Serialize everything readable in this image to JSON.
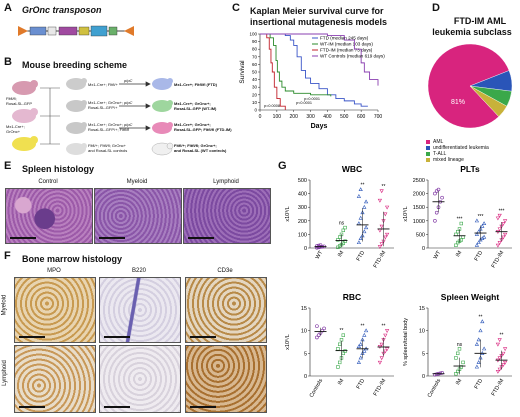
{
  "panels": {
    "A": {
      "letter": "A",
      "title": "GrOnc transposon",
      "segments": [
        "SA",
        "pA",
        "MSCV",
        "SD",
        "GFP",
        "T2",
        "SA"
      ]
    },
    "B": {
      "letter": "B",
      "title": "Mouse breeding scheme",
      "mice": [
        "Fltfl/fl;\nRosaLSL-GFP",
        "Mx1-Cre+;\nGrOnc+",
        "Mx1-Cre+; Fltfl/+",
        "Mx1-Cre+; GrOnc+;\nRosaLSL-GFP/+",
        "Mx1-Cre+; GrOnc+;\nRosaLSL-GFP/+; Fltfl/fl",
        "Fltfl/+; Fltfl/fl; GrOnc+\nand RosaLSL controls"
      ],
      "arrow_label": "pIpC",
      "outcomes": [
        "Mx1-Cre+; Fltfl/fl (FTD)",
        "Mx1-Cre+; GrOnc+;\nRosaLSL-GFP (WT-IM)",
        "Mx1-Cre+; GrOnc+;\nRosaLSL-GFP; Fltfl/fl (FTD-IM)",
        "Fltfl/+; Fltfl/fl; GrOnc+;\nand RosaLSL (WT controls)"
      ]
    },
    "C": {
      "letter": "C",
      "title_line1": "Kaplan Meier survival curve for",
      "title_line2": "insertional mutagenesis models"
    },
    "D": {
      "letter": "D",
      "title_line1": "FTD-IM AML",
      "title_line2": "leukemia subclass",
      "slice_label": "81%"
    },
    "E": {
      "letter": "E",
      "title": "Spleen histology",
      "captions": [
        "Control",
        "Myeloid",
        "Lymphoid"
      ]
    },
    "F": {
      "letter": "F",
      "title": "Bone marrow histology",
      "captions": [
        "MPO",
        "B220",
        "CD3e"
      ],
      "rows": [
        "Myeloid",
        "Lymphoid"
      ]
    },
    "G": {
      "letter": "G"
    }
  },
  "chart_data": [
    {
      "type": "line",
      "panel": "C",
      "xlabel": "Days",
      "ylabel": "Survival",
      "xlim": [
        0,
        700
      ],
      "ylim": [
        0,
        100
      ],
      "xticks": [
        0,
        100,
        200,
        300,
        400,
        500,
        600,
        700
      ],
      "yticks": [
        0,
        10,
        20,
        30,
        40,
        50,
        60,
        70,
        80,
        90,
        100
      ],
      "annotations": [
        "p=0.0001",
        "p<0.0001",
        "p=0.0008"
      ],
      "legend_position": "top-right",
      "series": [
        {
          "name": "FTD (median 245 days)",
          "color": "#3a55c8",
          "x": [
            0,
            150,
            180,
            200,
            220,
            245,
            270,
            300,
            350,
            400,
            450,
            500,
            560,
            600,
            640
          ],
          "y": [
            100,
            98,
            92,
            85,
            70,
            52,
            42,
            35,
            28,
            20,
            15,
            12,
            8,
            5,
            5
          ]
        },
        {
          "name": "WT-IM (median 103 days)",
          "color": "#2a8a2a",
          "x": [
            0,
            60,
            80,
            95,
            103,
            115,
            130,
            150,
            200,
            300,
            420
          ],
          "y": [
            100,
            95,
            85,
            65,
            50,
            38,
            30,
            25,
            22,
            20,
            18
          ]
        },
        {
          "name": "FTD-IM (median 73 days)",
          "color": "#c0202a",
          "x": [
            0,
            40,
            55,
            65,
            73,
            85,
            100,
            120,
            150
          ],
          "y": [
            100,
            95,
            80,
            62,
            50,
            30,
            15,
            5,
            0
          ]
        },
        {
          "name": "WT Controls (median 619 days)",
          "color": "#8a3fb0",
          "x": [
            0,
            300,
            400,
            500,
            560,
            600,
            619,
            650,
            700
          ],
          "y": [
            100,
            100,
            98,
            92,
            80,
            62,
            50,
            40,
            32
          ]
        }
      ]
    },
    {
      "type": "pie",
      "panel": "D",
      "categories": [
        "AML",
        "undifferentiated leukemia",
        "T-ALL",
        "mixed lineage"
      ],
      "values": [
        81,
        8,
        6,
        5
      ],
      "colors": [
        "#d8247e",
        "#2a55b8",
        "#3aa84a",
        "#c8b23a"
      ],
      "legend_position": "bottom"
    },
    {
      "type": "scatter",
      "panel": "G",
      "title": "WBC",
      "ylabel": "x10³/L",
      "categories": [
        "WT",
        "IM",
        "FTD",
        "FTD-IM"
      ],
      "ylim": [
        0,
        500
      ],
      "yticks": [
        0,
        100,
        200,
        300,
        400,
        500
      ],
      "sig": [
        "",
        "ns",
        "**",
        "**"
      ],
      "colors": [
        "#7b2fa0",
        "#3aa84a",
        "#2a55b8",
        "#d8247e"
      ],
      "markers": [
        "circle",
        "square",
        "triangle",
        "triangle-down"
      ],
      "values": [
        [
          2,
          5,
          8,
          10,
          12,
          15,
          18,
          22
        ],
        [
          5,
          15,
          25,
          35,
          50,
          60,
          80,
          100,
          130,
          150
        ],
        [
          40,
          70,
          90,
          120,
          150,
          180,
          220,
          260,
          300,
          340,
          380,
          430
        ],
        [
          10,
          30,
          50,
          80,
          100,
          130,
          160,
          200,
          250,
          300,
          350,
          420
        ]
      ],
      "means": [
        10,
        55,
        170,
        140
      ]
    },
    {
      "type": "scatter",
      "panel": "G",
      "title": "PLTs",
      "ylabel": "x10³/L",
      "categories": [
        "WT",
        "IM",
        "FTD",
        "FTD-IM"
      ],
      "ylim": [
        0,
        2500
      ],
      "yticks": [
        0,
        500,
        1000,
        1500,
        2000,
        2500
      ],
      "sig": [
        "",
        "***",
        "***",
        "***"
      ],
      "colors": [
        "#7b2fa0",
        "#3aa84a",
        "#2a55b8",
        "#d8247e"
      ],
      "markers": [
        "circle",
        "square",
        "triangle",
        "triangle-down"
      ],
      "values": [
        [
          1000,
          1300,
          1500,
          1700,
          1850,
          2000,
          2100,
          2150
        ],
        [
          100,
          200,
          250,
          300,
          400,
          500,
          600,
          700,
          900
        ],
        [
          100,
          200,
          300,
          350,
          400,
          500,
          600,
          700,
          800,
          900,
          1000
        ],
        [
          100,
          200,
          300,
          400,
          500,
          600,
          700,
          800,
          900,
          1000,
          1100,
          1200
        ]
      ],
      "means": [
        1700,
        450,
        550,
        600
      ]
    },
    {
      "type": "scatter",
      "panel": "G",
      "title": "RBC",
      "ylabel": "x10⁶/L",
      "categories": [
        "Controls",
        "IM",
        "FTD",
        "FTD-IM"
      ],
      "ylim": [
        0,
        15
      ],
      "yticks": [
        0,
        5,
        10,
        15
      ],
      "sig": [
        "",
        "**",
        "**",
        "**"
      ],
      "colors": [
        "#7b2fa0",
        "#3aa84a",
        "#2a55b8",
        "#d8247e"
      ],
      "markers": [
        "circle",
        "square",
        "triangle",
        "triangle-down"
      ],
      "values": [
        [
          8.5,
          9,
          9.5,
          10,
          10.5,
          11
        ],
        [
          2,
          3,
          4,
          5,
          5.5,
          6,
          7,
          8,
          9
        ],
        [
          3,
          4,
          5,
          5.5,
          6,
          6.5,
          7,
          8,
          9,
          10
        ],
        [
          3,
          4,
          5,
          5.5,
          6,
          6.5,
          7,
          8,
          9,
          10
        ]
      ],
      "means": [
        9.8,
        5.6,
        6.0,
        6.4
      ]
    },
    {
      "type": "scatter",
      "panel": "G",
      "title": "Spleen Weight",
      "ylabel": "% spleen/total body",
      "categories": [
        "Controls",
        "IM",
        "FTD",
        "FTD-IM"
      ],
      "ylim": [
        0,
        15
      ],
      "yticks": [
        0,
        5,
        10,
        15
      ],
      "sig": [
        "",
        "ns",
        "**",
        "**"
      ],
      "colors": [
        "#7b2fa0",
        "#3aa84a",
        "#2a55b8",
        "#d8247e"
      ],
      "markers": [
        "circle",
        "square",
        "triangle",
        "triangle-down"
      ],
      "values": [
        [
          0.3,
          0.4,
          0.5,
          0.6,
          0.7
        ],
        [
          0.5,
          1,
          1.5,
          2,
          3,
          4,
          5,
          6
        ],
        [
          2,
          3,
          4,
          5,
          6,
          7,
          8,
          10,
          12
        ],
        [
          1,
          1.5,
          2,
          2.5,
          3,
          3.5,
          4,
          4.5,
          5,
          6,
          7,
          8
        ]
      ],
      "means": [
        0.5,
        2.2,
        5.0,
        3.5
      ]
    }
  ]
}
